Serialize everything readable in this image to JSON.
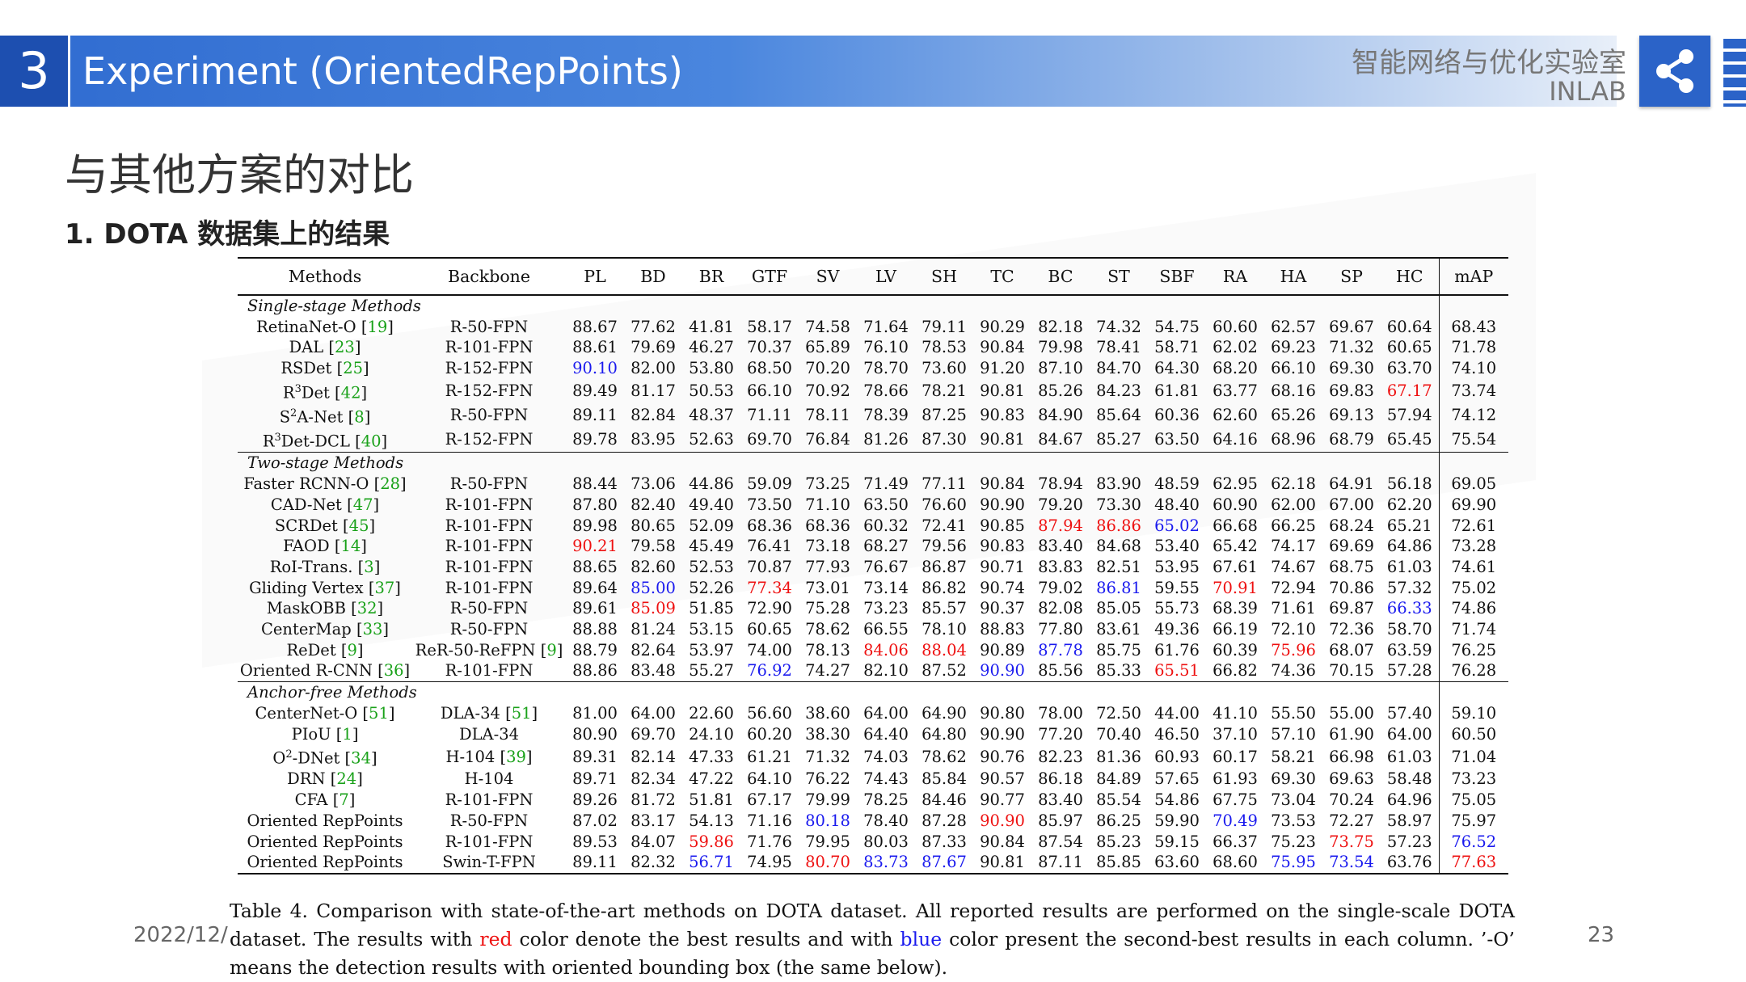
{
  "header": {
    "slide_number": "3",
    "title": "Experiment (OrientedRepPoints)",
    "lab_name_cn": "智能网络与优化实验室",
    "lab_name_en": "INLAB",
    "share_icon": "share-icon",
    "accent_color": "#2b63c8"
  },
  "section_title": "与其他方案的对比",
  "subtitle": "1. DOTA 数据集上的结果",
  "table": {
    "columns": [
      "Methods",
      "Backbone",
      "PL",
      "BD",
      "BR",
      "GTF",
      "SV",
      "LV",
      "SH",
      "TC",
      "BC",
      "ST",
      "SBF",
      "RA",
      "HA",
      "SP",
      "HC",
      "mAP"
    ],
    "best_color": "#ee1111",
    "second_best_color": "#1a1aee",
    "citation_color": "#19a119",
    "groups": [
      {
        "label": "Single-stage Methods",
        "rows": [
          {
            "method": "RetinaNet-O",
            "cite": "19",
            "backbone": "R-50-FPN",
            "values": [
              "88.67",
              "77.62",
              "41.81",
              "58.17",
              "74.58",
              "71.64",
              "79.11",
              "90.29",
              "82.18",
              "74.32",
              "54.75",
              "60.60",
              "62.57",
              "69.67",
              "60.64",
              "68.43"
            ]
          },
          {
            "method": "DAL",
            "cite": "23",
            "backbone": "R-101-FPN",
            "values": [
              "88.61",
              "79.69",
              "46.27",
              "70.37",
              "65.89",
              "76.10",
              "78.53",
              "90.84",
              "79.98",
              "78.41",
              "58.71",
              "62.02",
              "69.23",
              "71.32",
              "60.65",
              "71.78"
            ]
          },
          {
            "method": "RSDet",
            "cite": "25",
            "backbone": "R-152-FPN",
            "values": [
              "90.10",
              "82.00",
              "53.80",
              "68.50",
              "70.20",
              "78.70",
              "73.60",
              "91.20",
              "87.10",
              "84.70",
              "64.30",
              "68.20",
              "66.10",
              "69.30",
              "63.70",
              "74.10"
            ],
            "blue": [
              0
            ]
          },
          {
            "method": "R3Det",
            "cite": "42",
            "backbone": "R-152-FPN",
            "values": [
              "89.49",
              "81.17",
              "50.53",
              "66.10",
              "70.92",
              "78.66",
              "78.21",
              "90.81",
              "85.26",
              "84.23",
              "61.81",
              "63.77",
              "68.16",
              "69.83",
              "67.17",
              "73.74"
            ],
            "red": [
              14
            ]
          },
          {
            "method": "S2A-Net",
            "cite": "8",
            "backbone": "R-50-FPN",
            "values": [
              "89.11",
              "82.84",
              "48.37",
              "71.11",
              "78.11",
              "78.39",
              "87.25",
              "90.83",
              "84.90",
              "85.64",
              "60.36",
              "62.60",
              "65.26",
              "69.13",
              "57.94",
              "74.12"
            ]
          },
          {
            "method": "R3Det-DCL",
            "cite": "40",
            "backbone": "R-152-FPN",
            "values": [
              "89.78",
              "83.95",
              "52.63",
              "69.70",
              "76.84",
              "81.26",
              "87.30",
              "90.81",
              "84.67",
              "85.27",
              "63.50",
              "64.16",
              "68.96",
              "68.79",
              "65.45",
              "75.54"
            ]
          }
        ]
      },
      {
        "label": "Two-stage Methods",
        "rows": [
          {
            "method": "Faster RCNN-O",
            "cite": "28",
            "backbone": "R-50-FPN",
            "values": [
              "88.44",
              "73.06",
              "44.86",
              "59.09",
              "73.25",
              "71.49",
              "77.11",
              "90.84",
              "78.94",
              "83.90",
              "48.59",
              "62.95",
              "62.18",
              "64.91",
              "56.18",
              "69.05"
            ]
          },
          {
            "method": "CAD-Net",
            "cite": "47",
            "backbone": "R-101-FPN",
            "values": [
              "87.80",
              "82.40",
              "49.40",
              "73.50",
              "71.10",
              "63.50",
              "76.60",
              "90.90",
              "79.20",
              "73.30",
              "48.40",
              "60.90",
              "62.00",
              "67.00",
              "62.20",
              "69.90"
            ]
          },
          {
            "method": "SCRDet",
            "cite": "45",
            "backbone": "R-101-FPN",
            "values": [
              "89.98",
              "80.65",
              "52.09",
              "68.36",
              "68.36",
              "60.32",
              "72.41",
              "90.85",
              "87.94",
              "86.86",
              "65.02",
              "66.68",
              "66.25",
              "68.24",
              "65.21",
              "72.61"
            ],
            "red": [
              8,
              9
            ],
            "blue": [
              10
            ]
          },
          {
            "method": "FAOD",
            "cite": "14",
            "backbone": "R-101-FPN",
            "values": [
              "90.21",
              "79.58",
              "45.49",
              "76.41",
              "73.18",
              "68.27",
              "79.56",
              "90.83",
              "83.40",
              "84.68",
              "53.40",
              "65.42",
              "74.17",
              "69.69",
              "64.86",
              "73.28"
            ],
            "red": [
              0
            ]
          },
          {
            "method": "RoI-Trans.",
            "cite": "3",
            "backbone": "R-101-FPN",
            "values": [
              "88.65",
              "82.60",
              "52.53",
              "70.87",
              "77.93",
              "76.67",
              "86.87",
              "90.71",
              "83.83",
              "82.51",
              "53.95",
              "67.61",
              "74.67",
              "68.75",
              "61.03",
              "74.61"
            ]
          },
          {
            "method": "Gliding Vertex",
            "cite": "37",
            "backbone": "R-101-FPN",
            "values": [
              "89.64",
              "85.00",
              "52.26",
              "77.34",
              "73.01",
              "73.14",
              "86.82",
              "90.74",
              "79.02",
              "86.81",
              "59.55",
              "70.91",
              "72.94",
              "70.86",
              "57.32",
              "75.02"
            ],
            "red": [
              3,
              11
            ],
            "blue": [
              1,
              9
            ]
          },
          {
            "method": "MaskOBB",
            "cite": "32",
            "backbone": "R-50-FPN",
            "values": [
              "89.61",
              "85.09",
              "51.85",
              "72.90",
              "75.28",
              "73.23",
              "85.57",
              "90.37",
              "82.08",
              "85.05",
              "55.73",
              "68.39",
              "71.61",
              "69.87",
              "66.33",
              "74.86"
            ],
            "red": [
              1
            ],
            "blue": [
              14
            ]
          },
          {
            "method": "CenterMap",
            "cite": "33",
            "backbone": "R-50-FPN",
            "values": [
              "88.88",
              "81.24",
              "53.15",
              "60.65",
              "78.62",
              "66.55",
              "78.10",
              "88.83",
              "77.80",
              "83.61",
              "49.36",
              "66.19",
              "72.10",
              "72.36",
              "58.70",
              "71.74"
            ]
          },
          {
            "method": "ReDet",
            "cite": "9",
            "backbone": "ReR-50-ReFPN",
            "backbone_cite": "9",
            "values": [
              "88.79",
              "82.64",
              "53.97",
              "74.00",
              "78.13",
              "84.06",
              "88.04",
              "90.89",
              "87.78",
              "85.75",
              "61.76",
              "60.39",
              "75.96",
              "68.07",
              "63.59",
              "76.25"
            ],
            "red": [
              5,
              6,
              12
            ],
            "blue": [
              8
            ]
          },
          {
            "method": "Oriented R-CNN",
            "cite": "36",
            "backbone": "R-101-FPN",
            "values": [
              "88.86",
              "83.48",
              "55.27",
              "76.92",
              "74.27",
              "82.10",
              "87.52",
              "90.90",
              "85.56",
              "85.33",
              "65.51",
              "66.82",
              "74.36",
              "70.15",
              "57.28",
              "76.28"
            ],
            "red": [
              10
            ],
            "blue": [
              3,
              7
            ]
          }
        ]
      },
      {
        "label": "Anchor-free Methods",
        "rows": [
          {
            "method": "CenterNet-O",
            "cite": "51",
            "backbone": "DLA-34",
            "backbone_cite": "51",
            "values": [
              "81.00",
              "64.00",
              "22.60",
              "56.60",
              "38.60",
              "64.00",
              "64.90",
              "90.80",
              "78.00",
              "72.50",
              "44.00",
              "41.10",
              "55.50",
              "55.00",
              "57.40",
              "59.10"
            ]
          },
          {
            "method": "PIoU",
            "cite": "1",
            "backbone": "DLA-34",
            "values": [
              "80.90",
              "69.70",
              "24.10",
              "60.20",
              "38.30",
              "64.40",
              "64.80",
              "90.90",
              "77.20",
              "70.40",
              "46.50",
              "37.10",
              "57.10",
              "61.90",
              "64.00",
              "60.50"
            ]
          },
          {
            "method": "O2-DNet",
            "cite": "34",
            "backbone": "H-104",
            "backbone_cite": "39",
            "values": [
              "89.31",
              "82.14",
              "47.33",
              "61.21",
              "71.32",
              "74.03",
              "78.62",
              "90.76",
              "82.23",
              "81.36",
              "60.93",
              "60.17",
              "58.21",
              "66.98",
              "61.03",
              "71.04"
            ]
          },
          {
            "method": "DRN",
            "cite": "24",
            "backbone": "H-104",
            "values": [
              "89.71",
              "82.34",
              "47.22",
              "64.10",
              "76.22",
              "74.43",
              "85.84",
              "90.57",
              "86.18",
              "84.89",
              "57.65",
              "61.93",
              "69.30",
              "69.63",
              "58.48",
              "73.23"
            ]
          },
          {
            "method": "CFA",
            "cite": "7",
            "backbone": "R-101-FPN",
            "values": [
              "89.26",
              "81.72",
              "51.81",
              "67.17",
              "79.99",
              "78.25",
              "84.46",
              "90.77",
              "83.40",
              "85.54",
              "54.86",
              "67.75",
              "73.04",
              "70.24",
              "64.96",
              "75.05"
            ]
          },
          {
            "method": "Oriented RepPoints",
            "cite": "",
            "backbone": "R-50-FPN",
            "values": [
              "87.02",
              "83.17",
              "54.13",
              "71.16",
              "80.18",
              "78.40",
              "87.28",
              "90.90",
              "85.97",
              "86.25",
              "59.90",
              "70.49",
              "73.53",
              "72.27",
              "58.97",
              "75.97"
            ],
            "red": [
              7
            ],
            "blue": [
              4,
              11
            ]
          },
          {
            "method": "Oriented RepPoints",
            "cite": "",
            "backbone": "R-101-FPN",
            "values": [
              "89.53",
              "84.07",
              "59.86",
              "71.76",
              "79.95",
              "80.03",
              "87.33",
              "90.84",
              "87.54",
              "85.23",
              "59.15",
              "66.37",
              "75.23",
              "73.75",
              "57.23",
              "76.52"
            ],
            "red": [
              2,
              13
            ],
            "blue": [
              15
            ]
          },
          {
            "method": "Oriented RepPoints",
            "cite": "",
            "backbone": "Swin-T-FPN",
            "values": [
              "89.11",
              "82.32",
              "56.71",
              "74.95",
              "80.70",
              "83.73",
              "87.67",
              "90.81",
              "87.11",
              "85.85",
              "63.60",
              "68.60",
              "75.95",
              "73.54",
              "63.76",
              "77.63"
            ],
            "red": [
              4,
              15
            ],
            "blue": [
              2,
              5,
              6,
              12,
              13
            ]
          }
        ]
      }
    ]
  },
  "caption": {
    "part1": "Table 4. Comparison with state-of-the-art methods on DOTA dataset. All reported results are performed on the single-scale DOTA dataset. The results with ",
    "red_word": "red",
    "part2": " color denote the best results and with ",
    "blue_word": "blue",
    "part3": " color present the second-best results in each column. ’-O’ means the detection results with oriented bounding box (the same below)."
  },
  "footer": {
    "date": "2022/12/",
    "page_number": "23"
  }
}
